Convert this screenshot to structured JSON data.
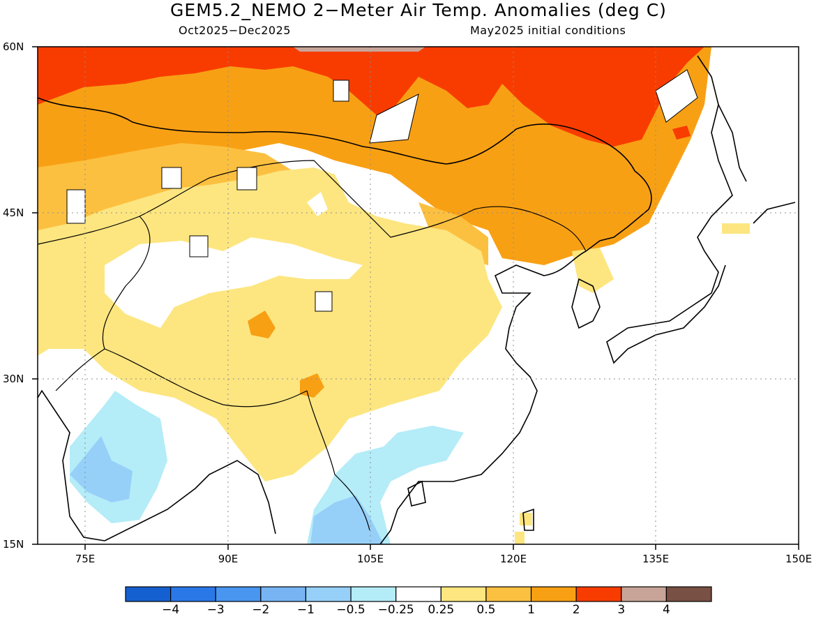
{
  "title": "GEM5.2_NEMO 2−Meter Air Temp. Anomalies (deg C)",
  "subtitle_left": "Oct2025−Dec2025",
  "subtitle_right": "May2025 initial conditions",
  "lat_labels": [
    "60N",
    "45N",
    "30N",
    "15N"
  ],
  "lon_labels": [
    "75E",
    "90E",
    "105E",
    "120E",
    "135E",
    "150E"
  ],
  "map_extent": {
    "lon_min": 70,
    "lon_max": 150,
    "lat_min": 15,
    "lat_max": 60
  },
  "colorbar": {
    "colors": [
      "#1560d0",
      "#2a78e8",
      "#4896f0",
      "#78b4f4",
      "#96d0f8",
      "#b4ecf8",
      "#ffffff",
      "#fde680",
      "#fcc040",
      "#f8a014",
      "#f83c00",
      "#c8a498",
      "#785044"
    ],
    "labels": [
      "−4",
      "−3",
      "−2",
      "−1",
      "−0.5",
      "−0.25",
      "0.25",
      "0.5",
      "1",
      "2",
      "3",
      "4"
    ]
  },
  "colors": {
    "anomaly_3plus": "#f83c00",
    "anomaly_2_3": "#f8a014",
    "anomaly_1_2": "#fcc040",
    "anomaly_05_1": "#fde680",
    "anomaly_neutral": "#ffffff",
    "anomaly_m05_m025": "#b4ecf8",
    "anomaly_m1_m05": "#96d0f8",
    "anomaly_4plus": "#c8a498"
  }
}
